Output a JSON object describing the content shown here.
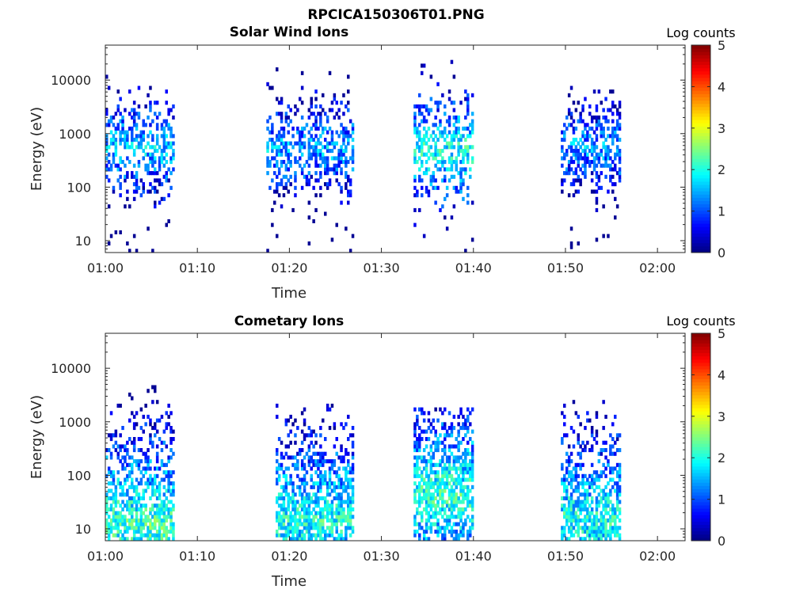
{
  "figure": {
    "title": "RPCICA150306T01.PNG"
  },
  "chart_data": [
    {
      "type": "heatmap",
      "title": "Solar Wind Ions",
      "xlabel": "Time",
      "ylabel": "Energy (eV)",
      "x_ticks": [
        "01:00",
        "01:10",
        "01:20",
        "01:30",
        "01:40",
        "01:50",
        "02:00"
      ],
      "x_range_minutes": [
        0,
        63
      ],
      "y_ticks": [
        "10",
        "100",
        "1000",
        "10000"
      ],
      "y_scale": "log",
      "y_range": [
        6,
        45000
      ],
      "colorbar": {
        "label": "Log counts",
        "ticks": [
          "0",
          "1",
          "2",
          "3",
          "4",
          "5"
        ],
        "range": [
          0,
          5
        ],
        "colormap": "jet"
      },
      "bursts": [
        {
          "start_min": 0.0,
          "end_min": 7.5,
          "e_min": 6,
          "e_max": 12000,
          "peak_energy": 550,
          "peak_log_counts": 2.2
        },
        {
          "start_min": 17.5,
          "end_min": 27.0,
          "e_min": 6,
          "e_max": 17000,
          "peak_energy": 550,
          "peak_log_counts": 2.1
        },
        {
          "start_min": 33.5,
          "end_min": 40.0,
          "e_min": 6,
          "e_max": 22000,
          "peak_energy": 500,
          "peak_log_counts": 2.6
        },
        {
          "start_min": 49.5,
          "end_min": 56.0,
          "e_min": 6,
          "e_max": 9000,
          "peak_energy": 550,
          "peak_log_counts": 2.0
        }
      ]
    },
    {
      "type": "heatmap",
      "title": "Cometary Ions",
      "xlabel": "Time",
      "ylabel": "Energy (eV)",
      "x_ticks": [
        "01:00",
        "01:10",
        "01:20",
        "01:30",
        "01:40",
        "01:50",
        "02:00"
      ],
      "x_range_minutes": [
        0,
        63
      ],
      "y_ticks": [
        "10",
        "100",
        "1000",
        "10000"
      ],
      "y_scale": "log",
      "y_range": [
        6,
        45000
      ],
      "colorbar": {
        "label": "Log counts",
        "ticks": [
          "0",
          "1",
          "2",
          "3",
          "4",
          "5"
        ],
        "range": [
          0,
          5
        ],
        "colormap": "jet"
      },
      "bursts": [
        {
          "start_min": 0.0,
          "end_min": 7.5,
          "e_min": 6,
          "e_max": 4500,
          "peak_energy": 12,
          "peak_log_counts": 2.8
        },
        {
          "start_min": 18.5,
          "end_min": 27.0,
          "e_min": 6,
          "e_max": 2200,
          "peak_energy": 15,
          "peak_log_counts": 2.6
        },
        {
          "start_min": 33.5,
          "end_min": 40.0,
          "e_min": 6,
          "e_max": 1800,
          "peak_energy": 45,
          "peak_log_counts": 2.7
        },
        {
          "start_min": 49.5,
          "end_min": 56.0,
          "e_min": 6,
          "e_max": 2400,
          "peak_energy": 15,
          "peak_log_counts": 2.6
        }
      ]
    }
  ]
}
